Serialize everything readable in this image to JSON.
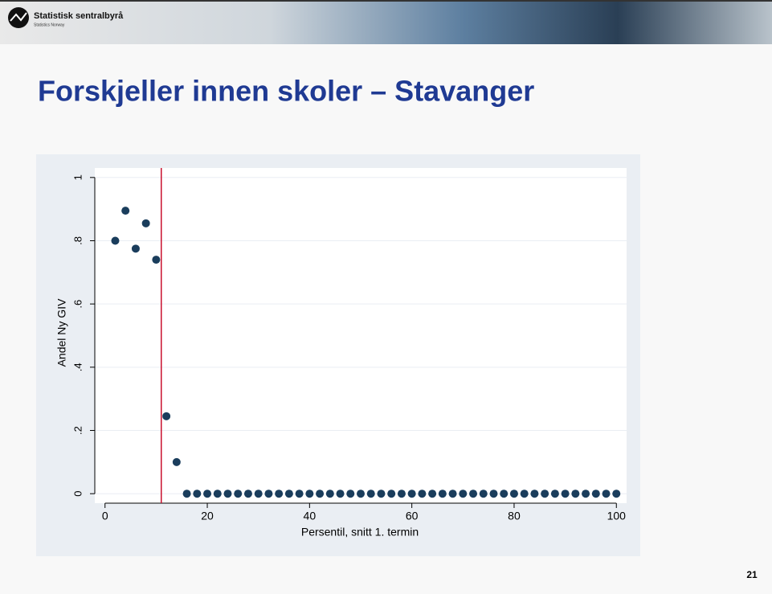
{
  "logo": {
    "name": "Statistisk sentralbyrå",
    "subname": "Statistics Norway"
  },
  "slide_title": "Forskjeller innen skoler – Stavanger",
  "page_number": "21",
  "chart_data": {
    "type": "scatter",
    "x_label": "Persentil, snitt 1. termin",
    "y_label": "Andel Ny GIV",
    "x": [
      2,
      4,
      6,
      8,
      10,
      12,
      14,
      16,
      18,
      20,
      22,
      24,
      26,
      28,
      30,
      32,
      34,
      36,
      38,
      40,
      42,
      44,
      46,
      48,
      50,
      52,
      54,
      56,
      58,
      60,
      62,
      64,
      66,
      68,
      70,
      72,
      74,
      76,
      78,
      80,
      82,
      84,
      86,
      88,
      90,
      92,
      94,
      96,
      98,
      100
    ],
    "values": [
      0.8,
      0.895,
      0.775,
      0.855,
      0.74,
      0.245,
      0.1,
      0,
      0,
      0,
      0,
      0,
      0,
      0,
      0,
      0,
      0,
      0,
      0,
      0,
      0,
      0,
      0,
      0,
      0,
      0,
      0,
      0,
      0,
      0,
      0,
      0,
      0,
      0,
      0,
      0,
      0,
      0,
      0,
      0,
      0,
      0,
      0,
      0,
      0,
      0,
      0,
      0,
      0,
      0
    ],
    "color": "#1a3d5c",
    "vline": 11,
    "vline_color": "#c8102e",
    "xlim": [
      -2,
      102
    ],
    "ylim": [
      -0.03,
      1.03
    ],
    "xticks": [
      0,
      20,
      40,
      60,
      80,
      100
    ],
    "yticks": [
      0,
      {
        "value": 0.2,
        "label": ".2"
      },
      {
        "value": 0.4,
        "label": ".4"
      },
      {
        "value": 0.6,
        "label": ".6"
      },
      {
        "value": 0.8,
        "label": ".8"
      },
      1
    ],
    "grid": true
  }
}
